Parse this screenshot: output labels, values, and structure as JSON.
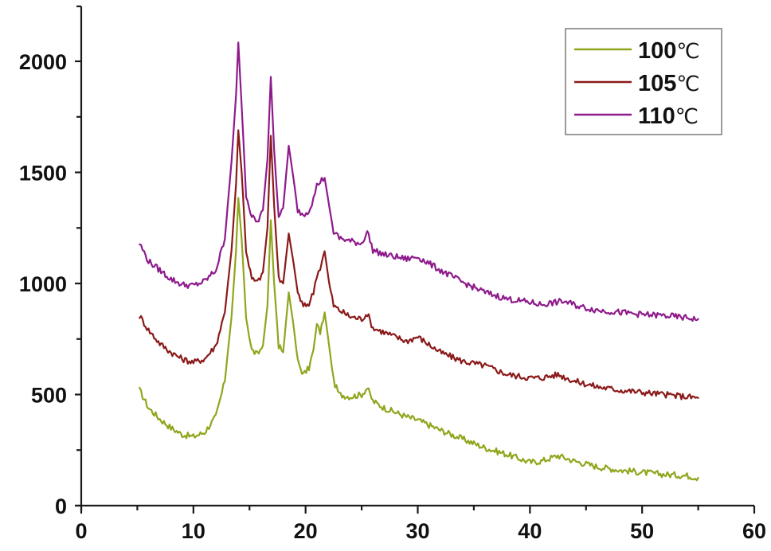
{
  "chart_data": {
    "type": "line",
    "title": "",
    "xlabel": "",
    "ylabel": "",
    "xlim": [
      0,
      60
    ],
    "ylim": [
      0,
      2250
    ],
    "x_ticks": [
      0,
      10,
      20,
      30,
      40,
      50,
      60
    ],
    "x_tick_labels": [
      "0",
      "10",
      "20",
      "30",
      "40",
      "50",
      "60"
    ],
    "y_ticks": [
      0,
      500,
      1000,
      1500,
      2000
    ],
    "y_tick_labels": [
      "0",
      "500",
      "1000",
      "1500",
      "2000"
    ],
    "x_minor_step": 5,
    "y_minor_step": 250,
    "grid": false,
    "legend_position": "upper right",
    "series": [
      {
        "name": "100℃",
        "label_number": "100",
        "label_unit": "℃",
        "color": "#8fa61c",
        "x": [
          5.2,
          6,
          7,
          8,
          9,
          10,
          11,
          12,
          12.8,
          13.4,
          13.8,
          14.0,
          14.3,
          14.7,
          15.2,
          15.7,
          16.2,
          16.6,
          16.9,
          17.2,
          17.6,
          18.0,
          18.5,
          18.9,
          19.3,
          19.8,
          20.3,
          20.7,
          21.0,
          21.3,
          21.7,
          22.1,
          22.5,
          23.0,
          24.0,
          25.0,
          25.5,
          26.0,
          27.0,
          28.0,
          29.0,
          30.0,
          32.0,
          34.0,
          36.0,
          38.0,
          40.0,
          41.0,
          42.5,
          44.0,
          46.0,
          48.0,
          50.0,
          52.0,
          54.0,
          55.0
        ],
        "values": [
          520,
          440,
          390,
          350,
          320,
          310,
          330,
          400,
          560,
          850,
          1150,
          1385,
          1200,
          850,
          700,
          680,
          720,
          900,
          1285,
          1000,
          720,
          690,
          960,
          820,
          650,
          590,
          620,
          700,
          815,
          780,
          870,
          720,
          560,
          500,
          490,
          500,
          530,
          470,
          440,
          420,
          400,
          385,
          340,
          300,
          260,
          230,
          195,
          200,
          225,
          200,
          175,
          160,
          150,
          140,
          135,
          125
        ]
      },
      {
        "name": "105℃",
        "label_number": "105",
        "label_unit": "℃",
        "color": "#8b1a1a",
        "x": [
          5.2,
          6,
          7,
          8,
          9,
          10,
          11,
          12,
          12.8,
          13.4,
          13.8,
          14.0,
          14.3,
          14.7,
          15.2,
          15.7,
          16.2,
          16.6,
          16.9,
          17.2,
          17.6,
          18.0,
          18.5,
          18.9,
          19.3,
          19.8,
          20.3,
          20.7,
          21.0,
          21.3,
          21.7,
          22.1,
          22.5,
          23.0,
          24.0,
          25.0,
          25.5,
          26.0,
          27.0,
          28.0,
          29.0,
          30.0,
          32.0,
          34.0,
          36.0,
          38.0,
          40.0,
          41.0,
          42.5,
          44.0,
          46.0,
          48.0,
          50.0,
          52.0,
          54.0,
          55.0
        ],
        "values": [
          855,
          790,
          730,
          690,
          660,
          645,
          660,
          720,
          870,
          1150,
          1450,
          1690,
          1500,
          1150,
          1020,
          1005,
          1050,
          1250,
          1665,
          1350,
          1020,
          1000,
          1225,
          1100,
          960,
          895,
          910,
          960,
          1040,
          1070,
          1145,
          1000,
          900,
          880,
          850,
          840,
          865,
          800,
          780,
          760,
          740,
          760,
          690,
          650,
          630,
          590,
          575,
          575,
          590,
          560,
          535,
          520,
          510,
          500,
          490,
          485
        ]
      },
      {
        "name": "110℃",
        "label_number": "110",
        "label_unit": "℃",
        "color": "#8e1a8c",
        "x": [
          5.2,
          6,
          7,
          8,
          9,
          10,
          11,
          12,
          12.8,
          13.4,
          13.8,
          14.0,
          14.3,
          14.7,
          15.2,
          15.7,
          16.2,
          16.6,
          16.9,
          17.2,
          17.6,
          18.0,
          18.5,
          18.9,
          19.3,
          19.8,
          20.3,
          20.7,
          21.0,
          21.3,
          21.7,
          22.1,
          22.5,
          23.0,
          24.0,
          25.0,
          25.5,
          26.0,
          27.0,
          28.0,
          29.0,
          30.0,
          32.0,
          34.0,
          36.0,
          38.0,
          40.0,
          41.0,
          43.0,
          44.5,
          46.0,
          48.0,
          50.0,
          52.0,
          54.0,
          55.0
        ],
        "values": [
          1180,
          1100,
          1060,
          1020,
          995,
          990,
          1010,
          1060,
          1200,
          1550,
          1850,
          2085,
          1800,
          1400,
          1300,
          1275,
          1330,
          1560,
          1930,
          1600,
          1290,
          1340,
          1620,
          1480,
          1330,
          1310,
          1330,
          1380,
          1440,
          1460,
          1475,
          1350,
          1230,
          1205,
          1190,
          1180,
          1235,
          1150,
          1130,
          1120,
          1110,
          1120,
          1060,
          1005,
          960,
          930,
          915,
          905,
          920,
          895,
          880,
          870,
          860,
          855,
          845,
          840
        ]
      }
    ]
  },
  "legend": {
    "items": [
      {
        "number": "100",
        "unit": "℃",
        "color": "#8fa61c"
      },
      {
        "number": "105",
        "unit": "℃",
        "color": "#8b1a1a"
      },
      {
        "number": "110",
        "unit": "℃",
        "color": "#8e1a8c"
      }
    ]
  }
}
